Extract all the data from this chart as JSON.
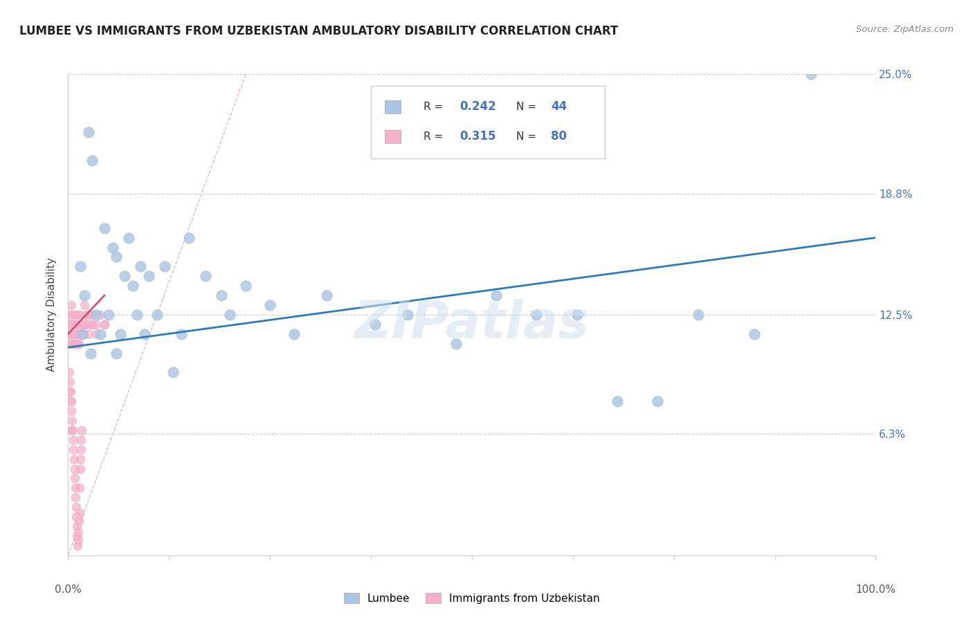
{
  "title": "LUMBEE VS IMMIGRANTS FROM UZBEKISTAN AMBULATORY DISABILITY CORRELATION CHART",
  "source": "Source: ZipAtlas.com",
  "ylabel": "Ambulatory Disability",
  "watermark": "ZIPatlas",
  "lumbee_R": 0.242,
  "lumbee_N": 44,
  "uzbek_R": 0.315,
  "uzbek_N": 80,
  "lumbee_color": "#aac4e2",
  "uzbek_color": "#f5afc8",
  "lumbee_line_color": "#2b7bba",
  "uzbek_line_color": "#d45070",
  "diagonal_color": "#d0d0d0",
  "xlim": [
    0,
    100
  ],
  "ylim": [
    0,
    25
  ],
  "ytick_positions": [
    6.3,
    12.5,
    18.8,
    25.0
  ],
  "ytick_labels": [
    "6.3%",
    "12.5%",
    "18.8%",
    "25.0%"
  ],
  "lumbee_x": [
    2.5,
    3.0,
    4.5,
    5.5,
    6.0,
    7.0,
    7.5,
    8.0,
    9.0,
    10.0,
    12.0,
    15.0,
    17.0,
    19.0,
    22.0,
    25.0,
    28.0,
    32.0,
    38.0,
    42.0,
    48.0,
    53.0,
    58.0,
    63.0,
    68.0,
    73.0,
    78.0,
    85.0,
    92.0,
    1.5,
    2.0,
    3.5,
    5.0,
    6.5,
    8.5,
    11.0,
    14.0,
    20.0,
    1.8,
    2.8,
    4.0,
    6.0,
    9.5,
    13.0
  ],
  "lumbee_y": [
    22.0,
    20.5,
    17.0,
    16.0,
    15.5,
    14.5,
    16.5,
    14.0,
    15.0,
    14.5,
    15.0,
    16.5,
    14.5,
    13.5,
    14.0,
    13.0,
    11.5,
    13.5,
    12.0,
    12.5,
    11.0,
    13.5,
    12.5,
    12.5,
    8.0,
    8.0,
    12.5,
    11.5,
    25.0,
    15.0,
    13.5,
    12.5,
    12.5,
    11.5,
    12.5,
    12.5,
    11.5,
    12.5,
    11.5,
    10.5,
    11.5,
    10.5,
    11.5,
    9.5
  ],
  "uzbek_x": [
    0.15,
    0.2,
    0.25,
    0.3,
    0.35,
    0.4,
    0.5,
    0.55,
    0.6,
    0.65,
    0.7,
    0.75,
    0.8,
    0.85,
    0.9,
    0.95,
    1.0,
    1.05,
    1.1,
    1.15,
    1.2,
    1.25,
    1.3,
    1.35,
    1.4,
    1.5,
    1.6,
    1.7,
    1.8,
    1.9,
    2.0,
    2.1,
    2.2,
    2.3,
    2.5,
    2.8,
    3.0,
    3.5,
    4.0,
    4.5,
    0.1,
    0.18,
    0.22,
    0.28,
    0.32,
    0.38,
    0.42,
    0.48,
    0.52,
    0.58,
    0.62,
    0.68,
    0.72,
    0.78,
    0.82,
    0.88,
    0.92,
    0.98,
    1.02,
    1.08,
    1.12,
    1.18,
    1.22,
    1.28,
    1.32,
    1.38,
    1.42,
    1.48,
    1.52,
    1.58,
    1.62,
    1.68,
    0.45,
    0.55,
    0.65,
    0.75,
    2.5,
    3.0,
    3.5,
    4.5
  ],
  "uzbek_y": [
    11.5,
    12.0,
    12.5,
    11.0,
    13.0,
    12.0,
    11.5,
    12.5,
    11.0,
    12.0,
    11.5,
    12.0,
    11.0,
    11.5,
    12.5,
    11.0,
    12.0,
    11.5,
    12.0,
    11.0,
    12.5,
    11.5,
    12.0,
    11.0,
    11.5,
    12.5,
    12.0,
    11.5,
    12.0,
    11.5,
    13.0,
    12.0,
    12.5,
    12.0,
    12.5,
    12.0,
    12.5,
    12.0,
    12.5,
    12.0,
    9.5,
    9.0,
    8.5,
    8.5,
    8.0,
    8.0,
    7.5,
    7.0,
    6.5,
    6.5,
    6.0,
    5.5,
    5.0,
    4.5,
    4.0,
    3.5,
    3.0,
    2.5,
    2.0,
    1.5,
    1.0,
    0.5,
    0.8,
    1.2,
    1.8,
    2.2,
    3.5,
    4.5,
    5.0,
    5.5,
    6.0,
    6.5,
    11.5,
    11.0,
    12.0,
    11.0,
    11.5,
    12.0,
    11.5,
    12.0
  ],
  "lumbee_line": [
    0,
    100,
    10.8,
    16.5
  ],
  "uzbek_line": [
    0.0,
    4.5,
    11.5,
    13.5
  ]
}
